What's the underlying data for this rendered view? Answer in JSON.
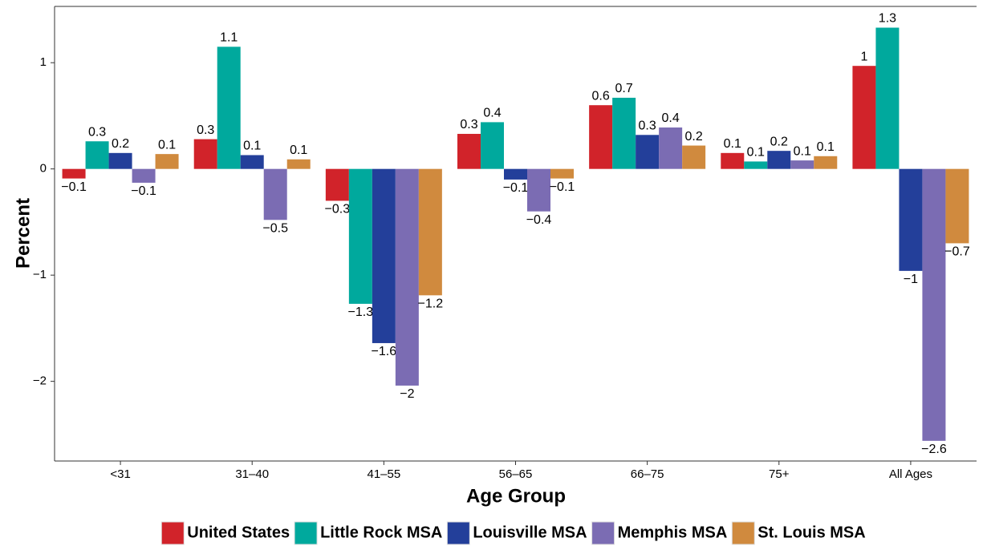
{
  "chart_data": {
    "type": "bar",
    "x_label": "Age Group",
    "y_label": "Percent",
    "categories": [
      "<31",
      "31–40",
      "41–55",
      "56–65",
      "66–75",
      "75+",
      "All Ages"
    ],
    "series": [
      {
        "name": "United States",
        "color": "#d1232a",
        "values": [
          -0.09,
          0.28,
          -0.3,
          0.33,
          0.6,
          0.15,
          0.97
        ],
        "value_labels": [
          "−0.1",
          "0.3",
          "−0.3",
          "0.3",
          "0.6",
          "0.1",
          "1"
        ]
      },
      {
        "name": "Little Rock MSA",
        "color": "#00a99d",
        "values": [
          0.26,
          1.15,
          -1.27,
          0.44,
          0.67,
          0.07,
          1.33
        ],
        "value_labels": [
          "0.3",
          "1.1",
          "−1.3",
          "0.4",
          "0.7",
          "0.1",
          "1.3"
        ]
      },
      {
        "name": "Louisville MSA",
        "color": "#233f9a",
        "values": [
          0.15,
          0.13,
          -1.64,
          -0.1,
          0.32,
          0.17,
          -0.96
        ],
        "value_labels": [
          "0.2",
          "0.1",
          "−1.6",
          "−0.1",
          "0.3",
          "0.2",
          "−1"
        ]
      },
      {
        "name": "Memphis MSA",
        "color": "#7b6cb3",
        "values": [
          -0.13,
          -0.48,
          -2.04,
          -0.4,
          0.39,
          0.08,
          -2.56
        ],
        "value_labels": [
          "−0.1",
          "−0.5",
          "−2",
          "−0.4",
          "0.4",
          "0.1",
          "−2.6"
        ]
      },
      {
        "name": "St. Louis MSA",
        "color": "#d08a3e",
        "values": [
          0.14,
          0.09,
          -1.19,
          -0.09,
          0.22,
          0.12,
          -0.7
        ],
        "value_labels": [
          "0.1",
          "0.1",
          "−1.2",
          "−0.1",
          "0.2",
          "0.1",
          "−0.7"
        ]
      }
    ],
    "ylim": [
      -2.75,
      1.53
    ],
    "yticks": [
      {
        "value": -2,
        "label": "−2"
      },
      {
        "value": -1,
        "label": "−1"
      },
      0,
      1
    ],
    "legend": "bottom"
  }
}
